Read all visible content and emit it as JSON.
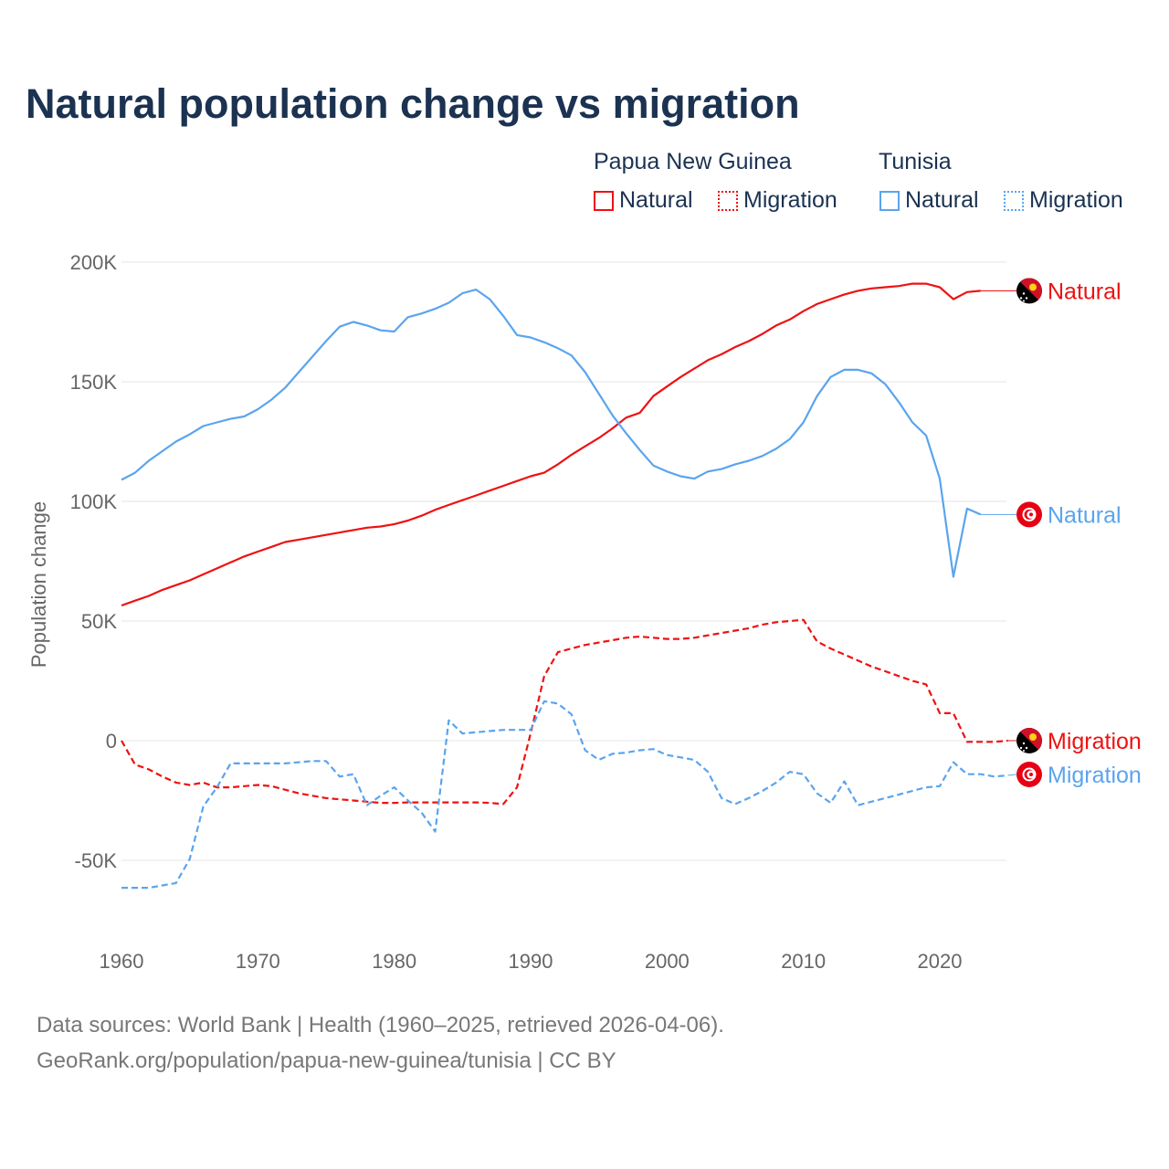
{
  "title": "Natural population change vs migration",
  "legend": {
    "groups": [
      {
        "name": "Papua New Guinea",
        "items": [
          "Natural",
          "Migration"
        ],
        "color": "#ee1111"
      },
      {
        "name": "Tunisia",
        "items": [
          "Natural",
          "Migration"
        ],
        "color": "#5ba4ee"
      }
    ]
  },
  "footer": {
    "line1": "Data sources: World Bank | Health (1960–2025, retrieved 2026-04-06).",
    "line2": "GeoRank.org/population/papua-new-guinea/tunisia | CC BY"
  },
  "chart_data": {
    "type": "line",
    "title": "Natural population change vs migration",
    "xlabel": "",
    "ylabel": "Population change",
    "xlim": [
      1960,
      2025
    ],
    "ylim": [
      -60000,
      200000
    ],
    "x_ticks": [
      1960,
      1970,
      1980,
      1990,
      2000,
      2010,
      2020
    ],
    "y_ticks": [
      {
        "v": 200000,
        "label": "200K"
      },
      {
        "v": 150000,
        "label": "150K"
      },
      {
        "v": 100000,
        "label": "100K"
      },
      {
        "v": 50000,
        "label": "50K"
      },
      {
        "v": 0,
        "label": "0"
      },
      {
        "v": -50000,
        "label": "-50K"
      }
    ],
    "grid": true,
    "series": [
      {
        "name": "Papua New Guinea Natural",
        "end_label": "Natural",
        "country": "png",
        "color": "#ee1111",
        "dash": false,
        "start": 1960,
        "values": [
          56.5,
          58.5,
          60.5,
          63,
          65,
          67,
          69.5,
          72,
          74.5,
          77,
          79,
          81,
          83,
          84,
          85,
          86,
          87,
          88,
          89,
          89.5,
          90.5,
          92,
          94,
          96.5,
          98.5,
          100.5,
          102.5,
          104.5,
          106.5,
          108.5,
          110.5,
          112,
          115.5,
          119.5,
          123,
          126.5,
          130.5,
          135,
          137,
          144,
          148,
          152,
          155.5,
          159,
          161.5,
          164.5,
          167,
          170,
          173.5,
          176,
          179.5,
          182.5,
          184.5,
          186.5,
          188,
          189,
          189.5,
          190,
          191,
          191,
          189.5,
          184.5,
          187.5,
          188
        ]
      },
      {
        "name": "Tunisia Natural",
        "end_label": "Natural",
        "country": "tun",
        "color": "#5ba4ee",
        "dash": false,
        "start": 1960,
        "values": [
          109,
          112,
          117,
          121,
          125,
          128,
          131.5,
          133,
          134.5,
          135.5,
          138.5,
          142.5,
          147.5,
          154,
          160.5,
          167,
          173,
          175,
          173.5,
          171.5,
          171,
          177,
          178.5,
          180.5,
          183,
          187,
          188.5,
          184.5,
          177.5,
          169.5,
          168.5,
          166.5,
          164,
          161,
          154,
          145,
          136,
          128.5,
          121.5,
          115,
          112.5,
          110.5,
          109.5,
          112.5,
          113.5,
          115.5,
          117,
          119,
          122,
          126,
          133,
          144,
          152,
          155,
          155,
          153.5,
          149,
          141.5,
          133,
          127.5,
          109.5,
          68.5,
          97,
          94.5
        ]
      },
      {
        "name": "Papua New Guinea Migration",
        "end_label": "Migration",
        "country": "png",
        "color": "#ee1111",
        "dash": true,
        "start": 1960,
        "values": [
          0,
          -10,
          -12,
          -15,
          -17.5,
          -18.5,
          -17.5,
          -19.5,
          -19.5,
          -19,
          -18.5,
          -19,
          -20.5,
          -22,
          -23,
          -24,
          -24.5,
          -25,
          -25.5,
          -26,
          -26,
          -25.8,
          -25.8,
          -25.8,
          -25.8,
          -25.8,
          -25.8,
          -26,
          -26.5,
          -19.5,
          3,
          27,
          37,
          38.5,
          40,
          41,
          42,
          43,
          43.5,
          43,
          42.5,
          42.5,
          43,
          44,
          45,
          46,
          47,
          48.5,
          49.5,
          50,
          50.5,
          41.5,
          38.5,
          36,
          33.5,
          31,
          29,
          27,
          25,
          23.5,
          11.5,
          11.5,
          -0.5,
          -0.5,
          -0.5,
          0
        ]
      },
      {
        "name": "Tunisia Migration",
        "end_label": "Migration",
        "country": "tun",
        "color": "#5ba4ee",
        "dash": true,
        "start": 1960,
        "values": [
          -61.5,
          -61.5,
          -61.5,
          -60.5,
          -59.5,
          -49.5,
          -27.5,
          -19.5,
          -9.5,
          -9.5,
          -9.5,
          -9.5,
          -9.5,
          -9,
          -8.5,
          -8.5,
          -15,
          -14,
          -27,
          -23,
          -19.5,
          -25,
          -30,
          -38,
          8.5,
          3,
          3.5,
          4,
          4.5,
          4.5,
          4.5,
          16.5,
          15.5,
          11,
          -4,
          -8,
          -5.5,
          -5,
          -4,
          -3.5,
          -6,
          -7,
          -8,
          -13,
          -24,
          -26.5,
          -24,
          -21,
          -17.5,
          -13,
          -14,
          -22,
          -26,
          -17,
          -27,
          -25.5,
          -24,
          -22.5,
          -21,
          -19.5,
          -19,
          -9,
          -14,
          -14,
          -15,
          -14.5
        ]
      }
    ],
    "value_unit": "thousands"
  }
}
